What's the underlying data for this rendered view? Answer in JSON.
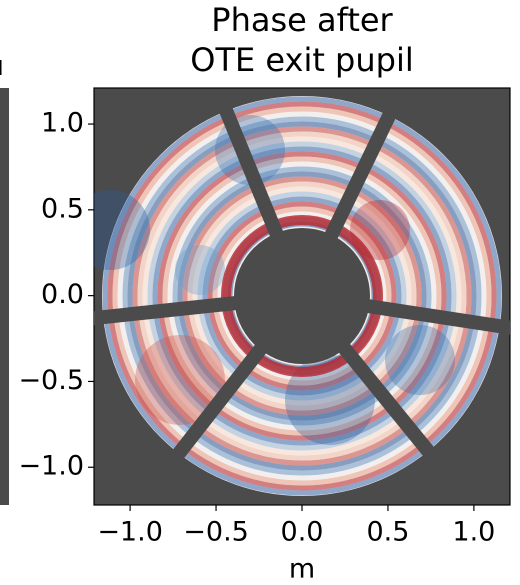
{
  "chart_data": {
    "type": "image",
    "title": [
      "Phase after",
      "OTE exit pupil"
    ],
    "xlabel": "m",
    "xlim": [
      -1.21,
      1.21
    ],
    "ylim": [
      -1.22,
      1.21
    ],
    "xticks": [
      {
        "value": -1,
        "label": "−1.0"
      },
      {
        "value": -0.5,
        "label": "−0.5"
      },
      {
        "value": 0,
        "label": "0.0"
      },
      {
        "value": 0.5,
        "label": "0.5"
      },
      {
        "value": 1,
        "label": "1.0"
      }
    ],
    "yticks": [
      {
        "value": 1,
        "label": "1.0"
      },
      {
        "value": 0.5,
        "label": "0.5"
      },
      {
        "value": 0,
        "label": "0.0"
      },
      {
        "value": -0.5,
        "label": "−0.5"
      },
      {
        "value": -1,
        "label": "−1.0"
      }
    ],
    "background": "#4b4b4b"
  }
}
